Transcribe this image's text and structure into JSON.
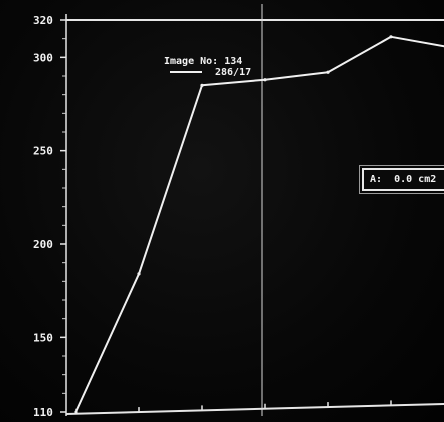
{
  "chart_data": {
    "type": "line",
    "title": "",
    "xlabel": "",
    "ylabel": "",
    "ylim": [
      110,
      320
    ],
    "y_ticks": [
      320,
      300,
      250,
      200,
      150,
      110
    ],
    "x_points": [
      0,
      1,
      2,
      3,
      4,
      5,
      6
    ],
    "series": [
      {
        "values": [
          110,
          184,
          285,
          288,
          292,
          311,
          305
        ]
      }
    ],
    "grid": false,
    "annotations": {
      "legend_line1": "Image No: 134",
      "legend_line2": "286/17",
      "area_label": "A:",
      "area_value": "0.0 cm2"
    },
    "colors": {
      "background": "#050505",
      "line": "#f0f0f0",
      "cursor": "#d8d8d8"
    }
  }
}
